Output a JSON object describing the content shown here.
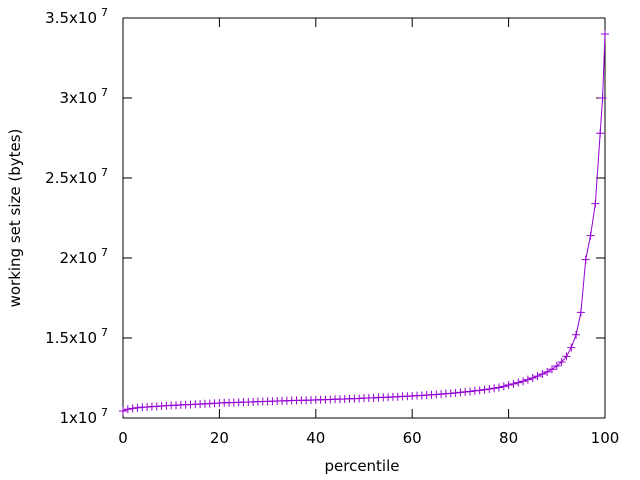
{
  "chart_data": {
    "type": "line",
    "xlabel": "percentile",
    "ylabel": "working set size (bytes)",
    "x": [
      0,
      1,
      2,
      3,
      4,
      5,
      6,
      7,
      8,
      9,
      10,
      11,
      12,
      13,
      14,
      15,
      16,
      17,
      18,
      19,
      20,
      21,
      22,
      23,
      24,
      25,
      26,
      27,
      28,
      29,
      30,
      31,
      32,
      33,
      34,
      35,
      36,
      37,
      38,
      39,
      40,
      41,
      42,
      43,
      44,
      45,
      46,
      47,
      48,
      49,
      50,
      51,
      52,
      53,
      54,
      55,
      56,
      57,
      58,
      59,
      60,
      61,
      62,
      63,
      64,
      65,
      66,
      67,
      68,
      69,
      70,
      71,
      72,
      73,
      74,
      75,
      76,
      77,
      78,
      79,
      80,
      81,
      82,
      83,
      84,
      85,
      86,
      87,
      88,
      89,
      90,
      91,
      92,
      93,
      94,
      95,
      96,
      97,
      98,
      99,
      99.5,
      100
    ],
    "series": [
      {
        "color": "#9400d3",
        "marker": "+",
        "values": [
          10440000,
          10550000,
          10600000,
          10640000,
          10670000,
          10690000,
          10710000,
          10730000,
          10750000,
          10770000,
          10790000,
          10800000,
          10820000,
          10830000,
          10840000,
          10860000,
          10870000,
          10890000,
          10900000,
          10920000,
          10940000,
          10950000,
          10960000,
          10970000,
          10980000,
          10990000,
          11000000,
          11010000,
          11020000,
          11030000,
          11040000,
          11050000,
          11060000,
          11070000,
          11080000,
          11090000,
          11100000,
          11100000,
          11110000,
          11120000,
          11130000,
          11140000,
          11150000,
          11160000,
          11170000,
          11180000,
          11190000,
          11200000,
          11210000,
          11220000,
          11240000,
          11250000,
          11260000,
          11280000,
          11290000,
          11300000,
          11320000,
          11330000,
          11350000,
          11360000,
          11380000,
          11400000,
          11410000,
          11430000,
          11450000,
          11470000,
          11490000,
          11520000,
          11540000,
          11570000,
          11600000,
          11630000,
          11660000,
          11700000,
          11730000,
          11770000,
          11810000,
          11860000,
          11910000,
          11980000,
          12060000,
          12130000,
          12210000,
          12300000,
          12400000,
          12500000,
          12620000,
          12750000,
          12880000,
          13050000,
          13250000,
          13500000,
          13850000,
          14400000,
          15200000,
          16600000,
          19900000,
          21400000,
          23400000,
          27800000,
          30000000,
          34000000
        ]
      }
    ],
    "xlim": [
      0,
      100
    ],
    "xticks": [
      0,
      20,
      40,
      60,
      80,
      100
    ],
    "ylim": [
      10000000,
      35000000
    ],
    "yticks": [
      {
        "value": 10000000,
        "label": "1x10",
        "sup": "7"
      },
      {
        "value": 15000000,
        "label": "1.5x10",
        "sup": "7"
      },
      {
        "value": 20000000,
        "label": "2x10",
        "sup": "7"
      },
      {
        "value": 25000000,
        "label": "2.5x10",
        "sup": "7"
      },
      {
        "value": 30000000,
        "label": "3x10",
        "sup": "7"
      },
      {
        "value": 35000000,
        "label": "3.5x10",
        "sup": "7"
      }
    ]
  }
}
